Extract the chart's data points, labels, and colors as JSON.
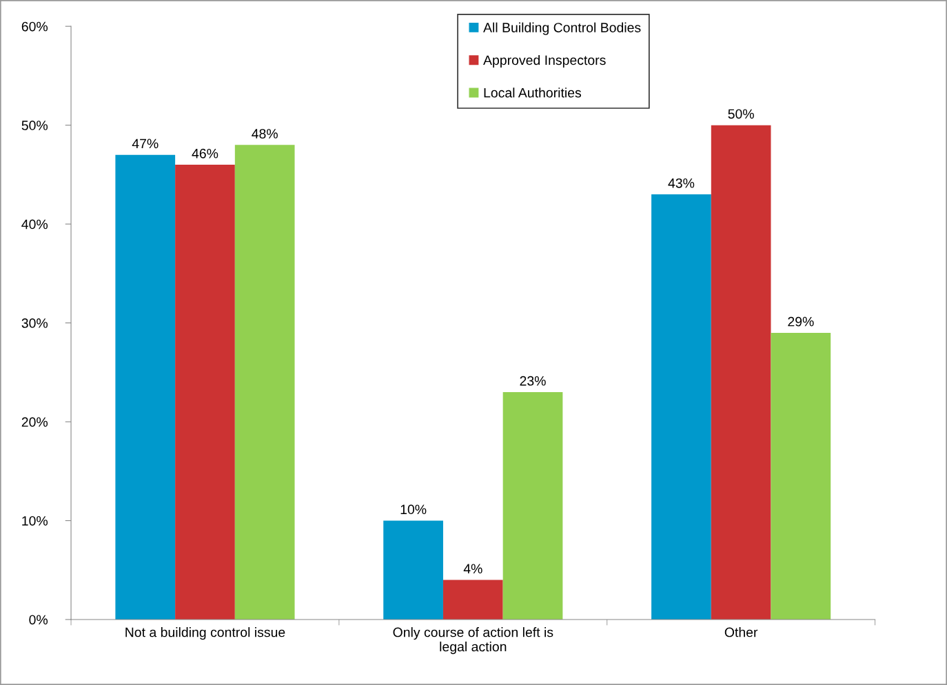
{
  "chart_data": {
    "type": "bar",
    "categories": [
      "Not a building control issue",
      "Only course of action left is legal action",
      "Other"
    ],
    "series": [
      {
        "name": "All Building Control Bodies",
        "color": "#0099cc",
        "values": [
          47,
          10,
          43
        ],
        "value_labels": [
          "47%",
          "10%",
          "43%"
        ]
      },
      {
        "name": "Approved Inspectors",
        "color": "#cc3333",
        "values": [
          46,
          4,
          50
        ],
        "value_labels": [
          "46%",
          "4%",
          "50%"
        ]
      },
      {
        "name": "Local Authorities",
        "color": "#92d050",
        "values": [
          48,
          23,
          29
        ],
        "value_labels": [
          "48%",
          "23%",
          "29%"
        ]
      }
    ],
    "ylim": [
      0,
      60
    ],
    "yticks": [
      {
        "value": 0,
        "label": "0%"
      },
      {
        "value": 10,
        "label": "10%"
      },
      {
        "value": 20,
        "label": "20%"
      },
      {
        "value": 30,
        "label": "30%"
      },
      {
        "value": 40,
        "label": "40%"
      },
      {
        "value": 50,
        "label": "50%"
      },
      {
        "value": 60,
        "label": "60%"
      }
    ],
    "grid": false,
    "legend": "top"
  }
}
